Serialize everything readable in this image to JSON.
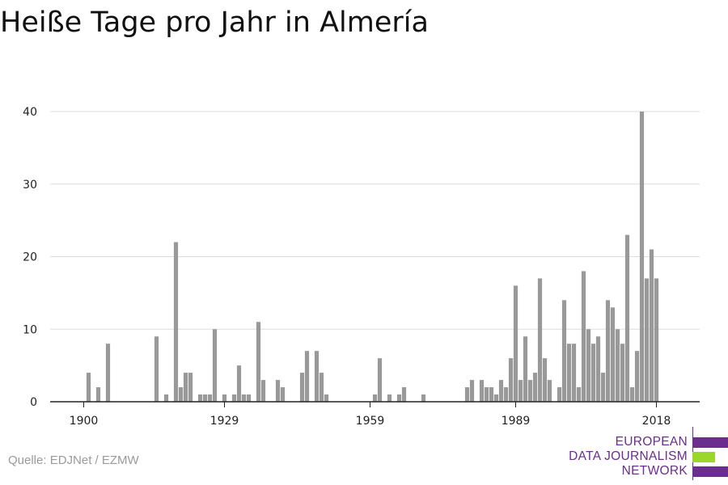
{
  "title": "Heiße Tage pro Jahr in Almería",
  "source": "Quelle: EDJNet / EZMW",
  "logo": {
    "lines": [
      "EUROPEAN",
      "DATA JOURNALISM",
      "NETWORK"
    ],
    "purple": "#6b2d8e",
    "green": "#9bd62a"
  },
  "chart_data": {
    "type": "bar",
    "title": "Heiße Tage pro Jahr in Almería",
    "xlabel": "",
    "ylabel": "",
    "ylim": [
      0,
      40
    ],
    "yticks": [
      0,
      10,
      20,
      30,
      40
    ],
    "xticks": [
      1900,
      1929,
      1959,
      1989,
      2018
    ],
    "grid": true,
    "bar_color": "#999999",
    "x": [
      1900,
      1901,
      1902,
      1903,
      1904,
      1905,
      1906,
      1907,
      1908,
      1909,
      1910,
      1911,
      1912,
      1913,
      1914,
      1915,
      1916,
      1917,
      1918,
      1919,
      1920,
      1921,
      1922,
      1923,
      1924,
      1925,
      1926,
      1927,
      1928,
      1929,
      1930,
      1931,
      1932,
      1933,
      1934,
      1935,
      1936,
      1937,
      1938,
      1939,
      1940,
      1941,
      1942,
      1943,
      1944,
      1945,
      1946,
      1947,
      1948,
      1949,
      1950,
      1951,
      1952,
      1953,
      1954,
      1955,
      1956,
      1957,
      1958,
      1959,
      1960,
      1961,
      1962,
      1963,
      1964,
      1965,
      1966,
      1967,
      1968,
      1969,
      1970,
      1971,
      1972,
      1973,
      1974,
      1975,
      1976,
      1977,
      1978,
      1979,
      1980,
      1981,
      1982,
      1983,
      1984,
      1985,
      1986,
      1987,
      1988,
      1989,
      1990,
      1991,
      1992,
      1993,
      1994,
      1995,
      1996,
      1997,
      1998,
      1999,
      2000,
      2001,
      2002,
      2003,
      2004,
      2005,
      2006,
      2007,
      2008,
      2009,
      2010,
      2011,
      2012,
      2013,
      2014,
      2015,
      2016,
      2017,
      2018,
      2019
    ],
    "values": [
      0,
      4,
      0,
      2,
      0,
      8,
      0,
      0,
      0,
      0,
      0,
      0,
      0,
      0,
      0,
      9,
      0,
      1,
      0,
      22,
      2,
      4,
      4,
      0,
      1,
      1,
      1,
      10,
      0,
      1,
      0,
      1,
      5,
      1,
      1,
      0,
      11,
      3,
      0,
      0,
      3,
      2,
      0,
      0,
      0,
      4,
      7,
      0,
      7,
      4,
      1,
      0,
      0,
      0,
      0,
      0,
      0,
      0,
      0,
      0,
      1,
      6,
      0,
      1,
      0,
      1,
      2,
      0,
      0,
      0,
      1,
      0,
      0,
      0,
      0,
      0,
      0,
      0,
      0,
      2,
      3,
      0,
      3,
      2,
      2,
      1,
      3,
      2,
      6,
      16,
      3,
      9,
      3,
      4,
      17,
      6,
      3,
      0,
      2,
      14,
      8,
      8,
      2,
      18,
      10,
      8,
      9,
      4,
      14,
      13,
      10,
      8,
      23,
      2,
      7,
      40,
      17,
      21,
      17,
      0
    ]
  }
}
